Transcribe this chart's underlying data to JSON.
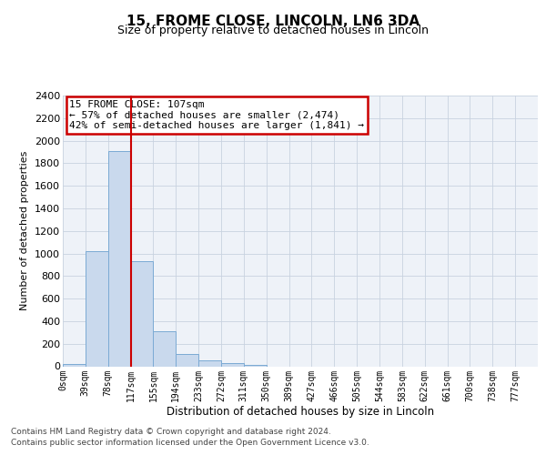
{
  "title": "15, FROME CLOSE, LINCOLN, LN6 3DA",
  "subtitle": "Size of property relative to detached houses in Lincoln",
  "xlabel": "Distribution of detached houses by size in Lincoln",
  "ylabel": "Number of detached properties",
  "bin_labels": [
    "0sqm",
    "39sqm",
    "78sqm",
    "117sqm",
    "155sqm",
    "194sqm",
    "233sqm",
    "272sqm",
    "311sqm",
    "350sqm",
    "389sqm",
    "427sqm",
    "466sqm",
    "505sqm",
    "544sqm",
    "583sqm",
    "622sqm",
    "661sqm",
    "700sqm",
    "738sqm",
    "777sqm"
  ],
  "bar_values": [
    20,
    1020,
    1910,
    930,
    310,
    105,
    55,
    30,
    15,
    0,
    0,
    0,
    0,
    0,
    0,
    0,
    0,
    0,
    0,
    0,
    0
  ],
  "bar_color": "#c9d9ed",
  "bar_edge_color": "#7baad4",
  "vline_x": 3,
  "vline_color": "#cc0000",
  "annotation_title": "15 FROME CLOSE: 107sqm",
  "annotation_line1": "← 57% of detached houses are smaller (2,474)",
  "annotation_line2": "42% of semi-detached houses are larger (1,841) →",
  "annotation_box_color": "#cc0000",
  "ylim": [
    0,
    2400
  ],
  "yticks": [
    0,
    200,
    400,
    600,
    800,
    1000,
    1200,
    1400,
    1600,
    1800,
    2000,
    2200,
    2400
  ],
  "footer_line1": "Contains HM Land Registry data © Crown copyright and database right 2024.",
  "footer_line2": "Contains public sector information licensed under the Open Government Licence v3.0.",
  "bg_color": "#eef2f8",
  "grid_color": "#c8d2e0"
}
